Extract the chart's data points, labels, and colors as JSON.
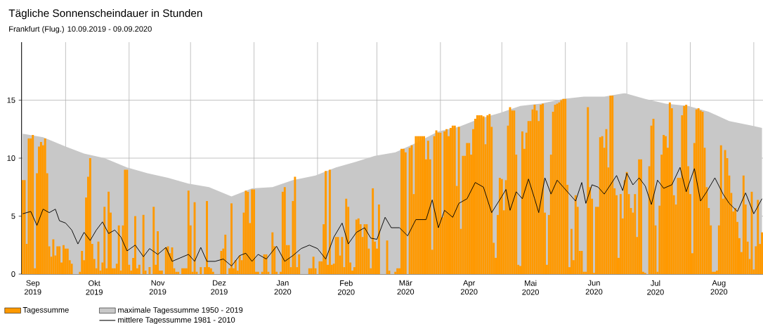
{
  "chart_data": {
    "type": "bar",
    "title": "Tägliche Sonnenscheindauer in Stunden",
    "subtitle": "Frankfurt (Flug.) 10.09.2019 - 09.09.2020",
    "x": [
      "2019-09-10",
      "2019-09-11",
      "2019-09-12",
      "2019-09-13",
      "2019-09-14",
      "2019-09-15",
      "2019-09-16",
      "2019-09-17",
      "2019-09-18",
      "2019-09-19",
      "2019-09-20",
      "2019-09-21",
      "2019-09-22",
      "2019-09-23",
      "2019-09-24",
      "2019-09-25",
      "2019-09-26",
      "2019-09-27",
      "2019-09-28",
      "2019-09-29",
      "2019-09-30",
      "2019-10-01",
      "2019-10-02",
      "2019-10-03",
      "2019-10-04",
      "2019-10-05",
      "2019-10-06",
      "2019-10-07",
      "2019-10-08",
      "2019-10-09",
      "2019-10-10",
      "2019-10-11",
      "2019-10-12",
      "2019-10-13",
      "2019-10-14",
      "2019-10-15",
      "2019-10-16",
      "2019-10-17",
      "2019-10-18",
      "2019-10-19",
      "2019-10-20",
      "2019-10-21",
      "2019-10-22",
      "2019-10-23",
      "2019-10-24",
      "2019-10-25",
      "2019-10-26",
      "2019-10-27",
      "2019-10-28",
      "2019-10-29",
      "2019-10-30",
      "2019-10-31",
      "2019-11-01",
      "2019-11-02",
      "2019-11-03",
      "2019-11-04",
      "2019-11-05",
      "2019-11-06",
      "2019-11-07",
      "2019-11-08",
      "2019-11-09",
      "2019-11-10",
      "2019-11-11",
      "2019-11-12",
      "2019-11-13",
      "2019-11-14",
      "2019-11-15",
      "2019-11-16",
      "2019-11-17",
      "2019-11-18",
      "2019-11-19",
      "2019-11-20",
      "2019-11-21",
      "2019-11-22",
      "2019-11-23",
      "2019-11-24",
      "2019-11-25",
      "2019-11-26",
      "2019-11-27",
      "2019-11-28",
      "2019-11-29",
      "2019-11-30",
      "2019-12-01",
      "2019-12-02",
      "2019-12-03",
      "2019-12-04",
      "2019-12-05",
      "2019-12-06",
      "2019-12-07",
      "2019-12-08",
      "2019-12-09",
      "2019-12-10",
      "2019-12-11",
      "2019-12-12",
      "2019-12-13",
      "2019-12-14",
      "2019-12-15",
      "2019-12-16",
      "2019-12-17",
      "2019-12-18",
      "2019-12-19",
      "2019-12-20",
      "2019-12-21",
      "2019-12-22",
      "2019-12-23",
      "2019-12-24",
      "2019-12-25",
      "2019-12-26",
      "2019-12-27",
      "2019-12-28",
      "2019-12-29",
      "2019-12-30",
      "2019-12-31",
      "2020-01-01",
      "2020-01-02",
      "2020-01-03",
      "2020-01-04",
      "2020-01-05",
      "2020-01-06",
      "2020-01-07",
      "2020-01-08",
      "2020-01-09",
      "2020-01-10",
      "2020-01-11",
      "2020-01-12",
      "2020-01-13",
      "2020-01-14",
      "2020-01-15",
      "2020-01-16",
      "2020-01-17",
      "2020-01-18",
      "2020-01-19",
      "2020-01-20",
      "2020-01-21",
      "2020-01-22",
      "2020-01-23",
      "2020-01-24",
      "2020-01-25",
      "2020-01-26",
      "2020-01-27",
      "2020-01-28",
      "2020-01-29",
      "2020-01-30",
      "2020-01-31",
      "2020-02-01",
      "2020-02-02",
      "2020-02-03",
      "2020-02-04",
      "2020-02-05",
      "2020-02-06",
      "2020-02-07",
      "2020-02-08",
      "2020-02-09",
      "2020-02-10",
      "2020-02-11",
      "2020-02-12",
      "2020-02-13",
      "2020-02-14",
      "2020-02-15",
      "2020-02-16",
      "2020-02-17",
      "2020-02-18",
      "2020-02-19",
      "2020-02-20",
      "2020-02-21",
      "2020-02-22",
      "2020-02-23",
      "2020-02-24",
      "2020-02-25",
      "2020-02-26",
      "2020-02-27",
      "2020-02-28",
      "2020-02-29",
      "2020-03-01",
      "2020-03-02",
      "2020-03-03",
      "2020-03-04",
      "2020-03-05",
      "2020-03-06",
      "2020-03-07",
      "2020-03-08",
      "2020-03-09",
      "2020-03-10",
      "2020-03-11",
      "2020-03-12",
      "2020-03-13",
      "2020-03-14",
      "2020-03-15",
      "2020-03-16",
      "2020-03-17",
      "2020-03-18",
      "2020-03-19",
      "2020-03-20",
      "2020-03-21",
      "2020-03-22",
      "2020-03-23",
      "2020-03-24",
      "2020-03-25",
      "2020-03-26",
      "2020-03-27",
      "2020-03-28",
      "2020-03-29",
      "2020-03-30",
      "2020-03-31",
      "2020-04-01",
      "2020-04-02",
      "2020-04-03",
      "2020-04-04",
      "2020-04-05",
      "2020-04-06",
      "2020-04-07",
      "2020-04-08",
      "2020-04-09",
      "2020-04-10",
      "2020-04-11",
      "2020-04-12",
      "2020-04-13",
      "2020-04-14",
      "2020-04-15",
      "2020-04-16",
      "2020-04-17",
      "2020-04-18",
      "2020-04-19",
      "2020-04-20",
      "2020-04-21",
      "2020-04-22",
      "2020-04-23",
      "2020-04-24",
      "2020-04-25",
      "2020-04-26",
      "2020-04-27",
      "2020-04-28",
      "2020-04-29",
      "2020-04-30",
      "2020-05-01",
      "2020-05-02",
      "2020-05-03",
      "2020-05-04",
      "2020-05-05",
      "2020-05-06",
      "2020-05-07",
      "2020-05-08",
      "2020-05-09",
      "2020-05-10",
      "2020-05-11",
      "2020-05-12",
      "2020-05-13",
      "2020-05-14",
      "2020-05-15",
      "2020-05-16",
      "2020-05-17",
      "2020-05-18",
      "2020-05-19",
      "2020-05-20",
      "2020-05-21",
      "2020-05-22",
      "2020-05-23",
      "2020-05-24",
      "2020-05-25",
      "2020-05-26",
      "2020-05-27",
      "2020-05-28",
      "2020-05-29",
      "2020-05-30",
      "2020-05-31",
      "2020-06-01",
      "2020-06-02",
      "2020-06-03",
      "2020-06-04",
      "2020-06-05",
      "2020-06-06",
      "2020-06-07",
      "2020-06-08",
      "2020-06-09",
      "2020-06-10",
      "2020-06-11",
      "2020-06-12",
      "2020-06-13",
      "2020-06-14",
      "2020-06-15",
      "2020-06-16",
      "2020-06-17",
      "2020-06-18",
      "2020-06-19",
      "2020-06-20",
      "2020-06-21",
      "2020-06-22",
      "2020-06-23",
      "2020-06-24",
      "2020-06-25",
      "2020-06-26",
      "2020-06-27",
      "2020-06-28",
      "2020-06-29",
      "2020-06-30",
      "2020-07-01",
      "2020-07-02",
      "2020-07-03",
      "2020-07-04",
      "2020-07-05",
      "2020-07-06",
      "2020-07-07",
      "2020-07-08",
      "2020-07-09",
      "2020-07-10",
      "2020-07-11",
      "2020-07-12",
      "2020-07-13",
      "2020-07-14",
      "2020-07-15",
      "2020-07-16",
      "2020-07-17",
      "2020-07-18",
      "2020-07-19",
      "2020-07-20",
      "2020-07-21",
      "2020-07-22",
      "2020-07-23",
      "2020-07-24",
      "2020-07-25",
      "2020-07-26",
      "2020-07-27",
      "2020-07-28",
      "2020-07-29",
      "2020-07-30",
      "2020-07-31",
      "2020-08-01",
      "2020-08-02",
      "2020-08-03",
      "2020-08-04",
      "2020-08-05",
      "2020-08-06",
      "2020-08-07",
      "2020-08-08",
      "2020-08-09",
      "2020-08-10",
      "2020-08-11",
      "2020-08-12",
      "2020-08-13",
      "2020-08-14",
      "2020-08-15",
      "2020-08-16",
      "2020-08-17",
      "2020-08-18",
      "2020-08-19",
      "2020-08-20",
      "2020-08-21",
      "2020-08-22",
      "2020-08-23",
      "2020-08-24",
      "2020-08-25",
      "2020-08-26",
      "2020-08-27",
      "2020-08-28",
      "2020-08-29",
      "2020-08-30",
      "2020-08-31",
      "2020-09-01",
      "2020-09-02",
      "2020-09-03",
      "2020-09-04",
      "2020-09-05"
    ],
    "series": [
      {
        "name": "Tagessumme",
        "color": "#ff9900",
        "values": [
          8.1,
          8.1,
          2.6,
          11.7,
          11.7,
          12.0,
          0.5,
          8.7,
          11.0,
          11.4,
          11.1,
          11.7,
          8.7,
          2.4,
          1.5,
          3.0,
          1.6,
          2.4,
          2.4,
          1.0,
          2.5,
          2.2,
          2.2,
          1.2,
          0.9,
          0,
          0,
          0,
          0.2,
          2.0,
          1.2,
          6.6,
          8.4,
          10.0,
          2.6,
          1.3,
          0.5,
          2.8,
          0.3,
          1.0,
          5.8,
          0.5,
          7.1,
          5.3,
          0.5,
          0.5,
          0.9,
          4.2,
          0.3,
          4.2,
          9.0,
          9.0,
          0.8,
          0.3,
          1.4,
          5.0,
          0.5,
          0.8,
          0,
          5.1,
          0.3,
          0,
          0.6,
          0,
          5.8,
          0.8,
          3.7,
          0.3,
          0.3,
          0,
          2.3,
          2.4,
          1.8,
          2.3,
          0.5,
          0.2,
          0.2,
          0,
          0.5,
          0.5,
          0.5,
          7.2,
          4.2,
          0.2,
          6.2,
          0.2,
          0,
          0.6,
          0,
          0.6,
          6.3,
          0.6,
          0.5,
          0.2,
          0,
          0,
          0,
          2.0,
          2.2,
          3.4,
          0,
          0.5,
          6.1,
          0.5,
          1.2,
          0.3,
          1.6,
          1.2,
          5.3,
          7.2,
          7.1,
          4.4,
          7.3,
          7.3,
          0.2,
          0.2,
          0,
          0.2,
          1.7,
          1.7,
          0.2,
          0,
          3.6,
          2.4,
          0.2,
          0,
          0.2,
          7.1,
          7.5,
          2.5,
          2.5,
          0.6,
          6.3,
          8.4,
          0.6,
          1.7,
          0,
          0,
          0,
          0,
          0.5,
          0.5,
          1.5,
          0.5,
          0,
          1.1,
          1.1,
          4.3,
          8.9,
          0.8,
          9.0,
          0.8,
          0.9,
          3.2,
          3.2,
          1.6,
          3.2,
          0.6,
          6.5,
          5.8,
          1.0,
          0.3,
          0.6,
          4.7,
          4.8,
          4.3,
          3.2,
          4.3,
          4.3,
          2.2,
          0.5,
          7.4,
          2.8,
          2.2,
          6.0,
          0,
          0,
          0,
          2.9,
          0.3,
          0,
          0,
          0.2,
          0.5,
          0.5,
          10.8,
          10.8,
          10.5,
          0,
          10.9,
          11.1,
          6.9,
          11.9,
          11.9,
          11.9,
          11.9,
          11.9,
          9.9,
          11.5,
          9.9,
          2.1,
          11.9,
          12.4,
          12.2,
          12.2,
          4.9,
          12.3,
          12.5,
          11.9,
          12.6,
          12.8,
          12.8,
          7.6,
          12.7,
          3.9,
          10.2,
          10.2,
          11.3,
          11.3,
          10.3,
          12.5,
          13.4,
          13.7,
          13.7,
          13.7,
          13.6,
          11.2,
          13.7,
          13.8,
          12.7,
          2.7,
          1.4,
          5.1,
          8.3,
          8.2,
          5.5,
          8.1,
          12.8,
          14.4,
          14.1,
          14.1,
          10.3,
          0.8,
          0.7,
          12.3,
          10.8,
          12.2,
          13.2,
          13.2,
          14.2,
          14.6,
          14.1,
          13.2,
          14.6,
          14.7,
          5.3,
          0.8,
          5.1,
          10.3,
          14.0,
          14.6,
          14.7,
          14.8,
          15.0,
          15.1,
          15.1,
          7.7,
          0.6,
          3.9,
          1.2,
          6.8,
          5.8,
          2.0,
          2.0,
          0.2,
          0.2,
          14.4,
          7.5,
          6.5,
          0.1,
          5.8,
          5.8,
          11.8,
          11.9,
          10.9,
          12.5,
          9.2,
          15.4,
          15.4,
          7.4,
          6.8,
          1.4,
          6.9,
          4.8,
          8.1,
          8.8,
          6.9,
          5.7,
          5.3,
          6.9,
          3.2,
          9.9,
          9.9,
          0.2,
          0.1,
          0,
          9.3,
          12.8,
          13.4,
          4.2,
          0.2,
          5.9,
          10.3,
          12.0,
          11.9,
          10.9,
          14.8,
          14.3,
          6.8,
          6.0,
          8.3,
          8.3,
          13.7,
          14.5,
          14.6,
          9.3,
          6.9,
          1.8,
          11.3,
          14.2,
          14.3,
          14.1,
          14.0,
          10.9,
          7.5,
          5.7,
          4.2,
          0.2,
          0.2,
          0.3,
          4.2,
          11.1,
          6.5,
          10.7,
          10.0,
          8.5,
          7.0,
          5.4,
          5.7,
          4.5,
          3.1,
          1.9,
          8.5,
          6.0,
          2.8,
          1.3,
          7.1,
          0.4,
          2.4,
          6.4,
          2.6,
          3.6
        ]
      },
      {
        "type": "area",
        "name": "maximale Tagessumme 1950 - 2019",
        "color": "#c8c8c8",
        "x": [
          "2019-09-10",
          "2019-09-20",
          "2019-10-01",
          "2019-10-10",
          "2019-10-20",
          "2019-10-31",
          "2019-11-10",
          "2019-11-20",
          "2019-11-30",
          "2019-12-10",
          "2019-12-21",
          "2019-12-31",
          "2020-01-10",
          "2020-01-20",
          "2020-01-31",
          "2020-02-10",
          "2020-02-20",
          "2020-02-29",
          "2020-03-10",
          "2020-03-20",
          "2020-03-31",
          "2020-04-10",
          "2020-04-20",
          "2020-04-30",
          "2020-05-10",
          "2020-05-20",
          "2020-05-31",
          "2020-06-10",
          "2020-06-20",
          "2020-06-30",
          "2020-07-10",
          "2020-07-20",
          "2020-07-31",
          "2020-08-10",
          "2020-08-20",
          "2020-08-31",
          "2020-09-05"
        ],
        "values": [
          12.1,
          11.8,
          11.0,
          10.4,
          10.0,
          9.2,
          8.7,
          8.3,
          7.8,
          7.5,
          6.7,
          7.4,
          7.5,
          8.1,
          8.5,
          9.2,
          9.7,
          10.2,
          10.5,
          11.3,
          12.3,
          12.7,
          13.4,
          13.9,
          14.5,
          14.7,
          15.1,
          15.3,
          15.3,
          15.6,
          15.1,
          14.7,
          14.5,
          14.0,
          13.2,
          12.8,
          12.6
        ]
      },
      {
        "type": "line",
        "name": "mittlere Tagessumme 1981 - 2010",
        "color": "#000000",
        "x": [
          "2019-09-10",
          "2019-09-14",
          "2019-09-17",
          "2019-09-20",
          "2019-09-23",
          "2019-09-26",
          "2019-09-28",
          "2019-10-01",
          "2019-10-04",
          "2019-10-07",
          "2019-10-10",
          "2019-10-13",
          "2019-10-16",
          "2019-10-19",
          "2019-10-22",
          "2019-10-25",
          "2019-10-28",
          "2019-10-31",
          "2019-11-04",
          "2019-11-08",
          "2019-11-11",
          "2019-11-15",
          "2019-11-19",
          "2019-11-22",
          "2019-11-26",
          "2019-11-30",
          "2019-12-03",
          "2019-12-06",
          "2019-12-09",
          "2019-12-13",
          "2019-12-17",
          "2019-12-21",
          "2019-12-25",
          "2019-12-28",
          "2019-12-31",
          "2020-01-03",
          "2020-01-07",
          "2020-01-12",
          "2020-01-16",
          "2020-01-20",
          "2020-01-24",
          "2020-01-28",
          "2020-02-01",
          "2020-02-05",
          "2020-02-09",
          "2020-02-13",
          "2020-02-16",
          "2020-02-20",
          "2020-02-24",
          "2020-02-27",
          "2020-03-01",
          "2020-03-05",
          "2020-03-08",
          "2020-03-12",
          "2020-03-16",
          "2020-03-20",
          "2020-03-25",
          "2020-03-28",
          "2020-03-31",
          "2020-04-03",
          "2020-04-07",
          "2020-04-10",
          "2020-04-14",
          "2020-04-18",
          "2020-04-22",
          "2020-04-26",
          "2020-05-01",
          "2020-05-03",
          "2020-05-05",
          "2020-05-08",
          "2020-05-11",
          "2020-05-14",
          "2020-05-17",
          "2020-05-19",
          "2020-05-22",
          "2020-05-25",
          "2020-05-28",
          "2020-05-31",
          "2020-06-03",
          "2020-06-06",
          "2020-06-09",
          "2020-06-11",
          "2020-06-14",
          "2020-06-17",
          "2020-06-20",
          "2020-06-23",
          "2020-06-26",
          "2020-06-29",
          "2020-07-01",
          "2020-07-04",
          "2020-07-07",
          "2020-07-10",
          "2020-07-13",
          "2020-07-16",
          "2020-07-19",
          "2020-07-23",
          "2020-07-27",
          "2020-07-30",
          "2020-08-03",
          "2020-08-06",
          "2020-08-09",
          "2020-08-13",
          "2020-08-17",
          "2020-08-20",
          "2020-08-24",
          "2020-08-28",
          "2020-09-01",
          "2020-09-05"
        ],
        "values": [
          5.2,
          5.4,
          4.2,
          5.6,
          5.3,
          5.6,
          4.6,
          4.4,
          3.8,
          2.6,
          3.6,
          2.9,
          3.8,
          4.5,
          3.5,
          3.8,
          3.2,
          2.0,
          2.5,
          1.5,
          2.2,
          1.7,
          2.3,
          1.1,
          1.4,
          1.7,
          1.1,
          2.3,
          1.1,
          1.1,
          1.3,
          0.7,
          1.6,
          1.8,
          1.1,
          1.7,
          1.3,
          2.4,
          1.1,
          1.6,
          2.2,
          2.5,
          2.2,
          1.3,
          3.2,
          4.4,
          2.6,
          3.6,
          4.0,
          3.1,
          3.0,
          4.9,
          4.0,
          4.0,
          3.3,
          4.7,
          4.7,
          6.4,
          4.0,
          5.5,
          4.9,
          6.1,
          6.5,
          7.9,
          7.5,
          5.3,
          6.7,
          7.3,
          5.5,
          7.1,
          6.5,
          8.2,
          6.5,
          5.3,
          8.3,
          6.9,
          8.1,
          7.5,
          6.9,
          6.3,
          7.9,
          6.1,
          7.7,
          7.5,
          6.9,
          7.7,
          8.5,
          7.2,
          8.7,
          7.7,
          8.3,
          7.6,
          6.0,
          8.1,
          7.4,
          7.7,
          9.2,
          7.1,
          9.1,
          6.3,
          7.1,
          8.3,
          6.9,
          6.1,
          5.4,
          7.0,
          5.2,
          6.5
        ]
      }
    ],
    "xlim": [
      "2019-09-09T12:00",
      "2020-09-05T12:00"
    ],
    "xticks": [
      {
        "value": "2019-10-01",
        "label": null
      },
      {
        "value": "2019-11-01",
        "label": null
      },
      {
        "value": "2019-12-01",
        "label": null
      },
      {
        "value": "2020-01-01",
        "label": null
      },
      {
        "value": "2020-02-01",
        "label": null
      },
      {
        "value": "2020-03-01",
        "label": null
      },
      {
        "value": "2020-04-01",
        "label": null
      },
      {
        "value": "2020-05-01",
        "label": null
      },
      {
        "value": "2020-06-01",
        "label": null
      },
      {
        "value": "2020-07-01",
        "label": null
      },
      {
        "value": "2020-08-01",
        "label": null
      },
      {
        "value": "2020-09-01",
        "label": null
      },
      {
        "value": "2019-09-15",
        "label": "Sep 2019"
      },
      {
        "value": "2019-10-15",
        "label": "Okt 2019"
      },
      {
        "value": "2019-11-15",
        "label": "Nov 2019"
      },
      {
        "value": "2019-12-15",
        "label": "Dez 2019"
      },
      {
        "value": "2020-01-15",
        "label": "Jan 2020"
      },
      {
        "value": "2020-02-15",
        "label": "Feb 2020"
      },
      {
        "value": "2020-03-15",
        "label": "Mär 2020"
      },
      {
        "value": "2020-04-15",
        "label": "Apr 2020"
      },
      {
        "value": "2020-05-15",
        "label": "Mai 2020"
      },
      {
        "value": "2020-06-15",
        "label": "Jun 2020"
      },
      {
        "value": "2020-07-15",
        "label": "Jul 2020"
      },
      {
        "value": "2020-08-15",
        "label": "Aug 2020"
      }
    ],
    "ylim": [
      0,
      20
    ],
    "yticks": [
      0,
      5,
      10,
      15
    ],
    "grid": true,
    "legend": "bottom"
  }
}
